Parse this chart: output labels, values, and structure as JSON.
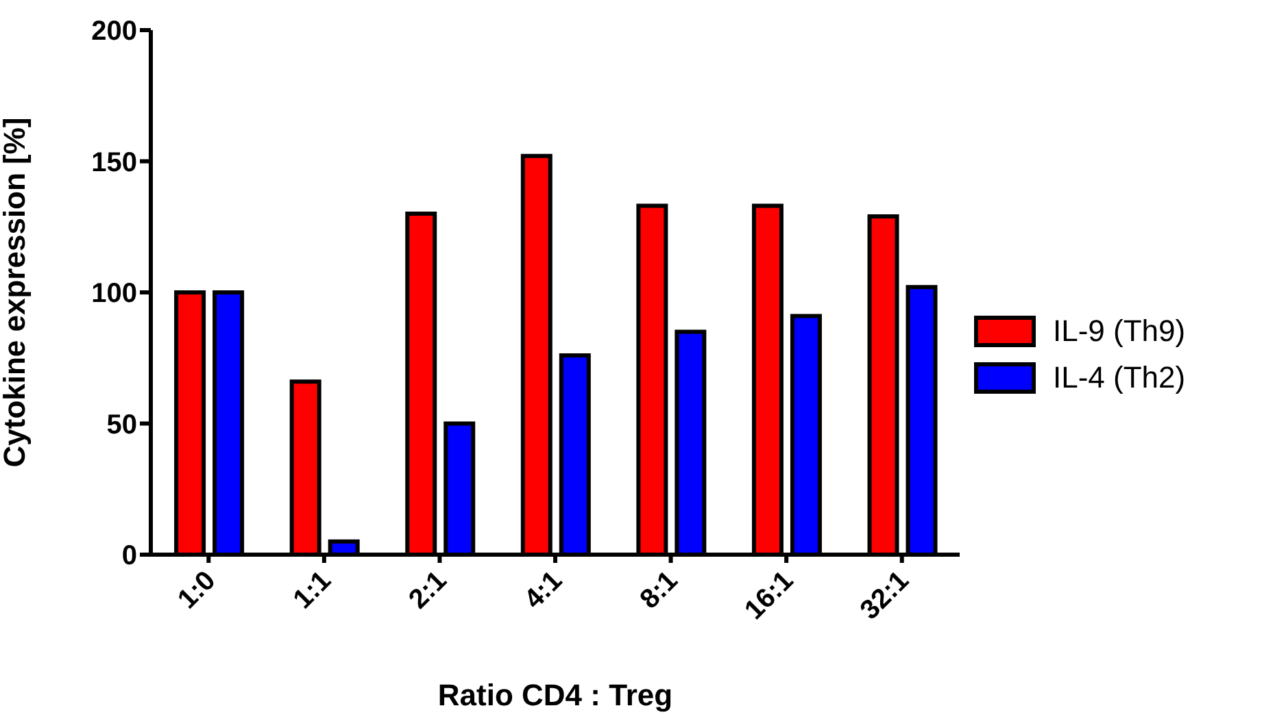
{
  "chart_data": {
    "type": "bar",
    "xlabel": "Ratio CD4 : Treg",
    "ylabel": "Cytokine expression [%]",
    "categories": [
      "1:0",
      "1:1",
      "2:1",
      "4:1",
      "8:1",
      "16:1",
      "32:1"
    ],
    "series": [
      {
        "name": "IL-9 (Th9)",
        "color": "#ff0000",
        "values": [
          100,
          66,
          130,
          152,
          133,
          133,
          129
        ]
      },
      {
        "name": "IL-4 (Th2)",
        "color": "#0000ff",
        "values": [
          100,
          5,
          50,
          76,
          85,
          91,
          102
        ]
      }
    ],
    "ylim": [
      0,
      200
    ],
    "yticks": [
      0,
      50,
      100,
      150,
      200
    ],
    "grid": false,
    "legend": "right"
  }
}
